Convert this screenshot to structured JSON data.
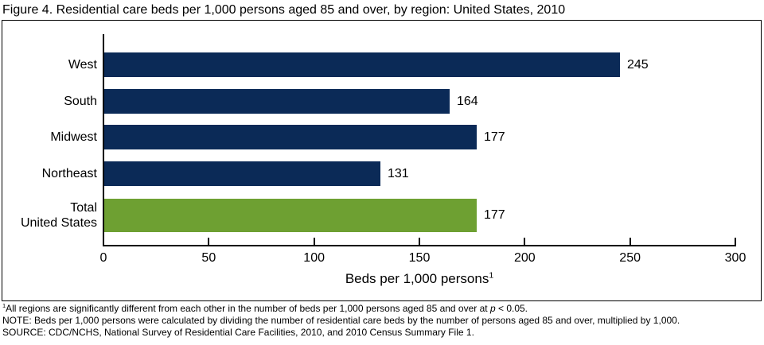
{
  "title": "Figure 4. Residential care beds per 1,000 persons aged 85 and over, by region: United States, 2010",
  "colors": {
    "bar_navy": "#0b2a57",
    "bar_green": "#6ea032",
    "axis": "#000000"
  },
  "chart_data": {
    "type": "bar",
    "orientation": "horizontal",
    "title": "Figure 4. Residential care beds per 1,000 persons aged 85 and over, by region: United States, 2010",
    "categories": [
      "West",
      "South",
      "Midwest",
      "Northeast",
      "Total United States"
    ],
    "category_label_lines": [
      [
        "West"
      ],
      [
        "South"
      ],
      [
        "Midwest"
      ],
      [
        "Northeast"
      ],
      [
        "Total",
        "United States"
      ]
    ],
    "values": [
      245,
      164,
      177,
      131,
      177
    ],
    "value_labels": [
      "245",
      "164",
      "177",
      "131",
      "177"
    ],
    "bar_colors": [
      "#0b2a57",
      "#0b2a57",
      "#0b2a57",
      "#0b2a57",
      "#6ea032"
    ],
    "xlabel": "Beds per 1,000 persons",
    "xlabel_footnote_marker": "1",
    "xlim": [
      0,
      300
    ],
    "xticks": [
      0,
      50,
      100,
      150,
      200,
      250,
      300
    ],
    "grid": false,
    "legend_position": "none"
  },
  "footnotes": {
    "significance": {
      "marker": "1",
      "before_p": "All regions are significantly different from each other in the number of beds per 1,000 persons aged 85 and over at ",
      "p_symbol": "p",
      "after_p": " < 0.05."
    },
    "note": "NOTE: Beds per 1,000 persons were calculated by dividing the number of residential care beds by the number of persons aged 85 and over, multiplied by 1,000.",
    "source": "SOURCE: CDC/NCHS, National Survey of Residential Care Facilities, 2010, and 2010 Census Summary File 1."
  }
}
